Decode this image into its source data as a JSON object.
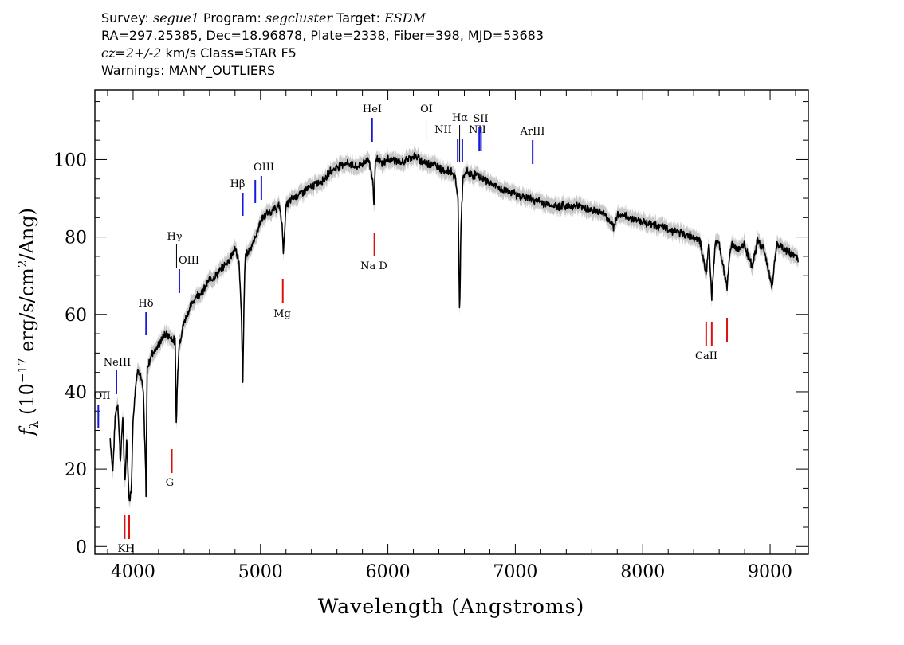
{
  "header": {
    "survey_label": "Survey:",
    "survey": "segue1",
    "program_label": "Program:",
    "program": "segcluster",
    "target_label": "Target:",
    "target": "ESDM",
    "line2": "RA=297.25385, Dec=18.96878, Plate=2338, Fiber=398, MJD=53683",
    "cz": "cz=2+/-2",
    "line3_rest": " km/s Class=STAR F5",
    "line4": "Warnings: MANY_OUTLIERS"
  },
  "chart_data": {
    "type": "line",
    "xlabel": "Wavelength (Angstroms)",
    "ylabel": "fλ (10^-17 erg/s/cm^2/Ang)",
    "xlim": [
      3700,
      9300
    ],
    "ylim": [
      -2,
      118
    ],
    "xticks": [
      4000,
      5000,
      6000,
      7000,
      8000,
      9000
    ],
    "yticks": [
      0,
      20,
      40,
      60,
      80,
      100
    ],
    "series": [
      {
        "style": "black flux line with grey error band",
        "x": [
          3820,
          3840,
          3860,
          3880,
          3900,
          3920,
          3935,
          3950,
          3968,
          3985,
          4000,
          4020,
          4040,
          4060,
          4080,
          4100,
          4102,
          4110,
          4130,
          4150,
          4200,
          4250,
          4300,
          4330,
          4340,
          4345,
          4360,
          4380,
          4400,
          4450,
          4500,
          4550,
          4600,
          4650,
          4700,
          4750,
          4800,
          4830,
          4850,
          4861,
          4870,
          4880,
          4900,
          4950,
          5000,
          5050,
          5100,
          5150,
          5172,
          5180,
          5200,
          5250,
          5300,
          5350,
          5400,
          5450,
          5500,
          5550,
          5600,
          5650,
          5700,
          5750,
          5800,
          5850,
          5880,
          5892,
          5900,
          5920,
          5950,
          6000,
          6050,
          6100,
          6150,
          6200,
          6250,
          6300,
          6350,
          6400,
          6450,
          6500,
          6530,
          6550,
          6563,
          6575,
          6590,
          6620,
          6650,
          6700,
          6750,
          6800,
          6850,
          6900,
          6950,
          7000,
          7100,
          7200,
          7300,
          7400,
          7500,
          7600,
          7700,
          7777,
          7800,
          7900,
          8000,
          8100,
          8200,
          8300,
          8400,
          8450,
          8498,
          8520,
          8542,
          8570,
          8600,
          8662,
          8690,
          8750,
          8800,
          8860,
          8900,
          8950,
          9015,
          9050,
          9100,
          9150,
          9200,
          9220
        ],
        "y": [
          28,
          19,
          34,
          37,
          22,
          34,
          15,
          28,
          12,
          14,
          33,
          42,
          46,
          44,
          40,
          18,
          13,
          46,
          48,
          50,
          52,
          55,
          54,
          53,
          30,
          40,
          52,
          55,
          58,
          62,
          65,
          66,
          69,
          70,
          72,
          74,
          77,
          74,
          60,
          42,
          62,
          75,
          76,
          79,
          84,
          86,
          87,
          88,
          82,
          76,
          88,
          90,
          91,
          92,
          93,
          94,
          95,
          97,
          98,
          99,
          99,
          98,
          99,
          100,
          95,
          88,
          99,
          100,
          99,
          100,
          100,
          99,
          100,
          101,
          100,
          99,
          99,
          98,
          97,
          97,
          95,
          90,
          60,
          85,
          95,
          97,
          96,
          96,
          95,
          94,
          93,
          92,
          92,
          91,
          90,
          89,
          88,
          88,
          88,
          87,
          86,
          82,
          86,
          85,
          84,
          83,
          82,
          81,
          80,
          79,
          70,
          79,
          64,
          79,
          78,
          67,
          78,
          77,
          78,
          72,
          79,
          77,
          67,
          78,
          77,
          76,
          75,
          74
        ],
        "error_band": 2
      }
    ],
    "line_markers": {
      "emission": [
        {
          "label": "OII",
          "x": 3727
        },
        {
          "label": "NeIII",
          "x": 3869
        },
        {
          "label": "Hδ",
          "x": 4102
        },
        {
          "label": "Hγ",
          "x": 4341
        },
        {
          "label": "OIII",
          "x": 4363
        },
        {
          "label": "Hβ",
          "x": 4861
        },
        {
          "label": "OIII",
          "x": 4959
        },
        {
          "label": "OIII",
          "x": 5007
        },
        {
          "label": "HeI",
          "x": 5876
        },
        {
          "label": "OI",
          "x": 6300
        },
        {
          "label": "NII",
          "x": 6548
        },
        {
          "label": "Hα",
          "x": 6563
        },
        {
          "label": "NII",
          "x": 6584
        },
        {
          "label": "SII",
          "x": 6717
        },
        {
          "label": "SII",
          "x": 6731
        },
        {
          "label": "ArIII",
          "x": 7136
        }
      ],
      "absorption": [
        {
          "label": "K",
          "x": 3934
        },
        {
          "label": "H",
          "x": 3969
        },
        {
          "label": "G",
          "x": 4304
        },
        {
          "label": "Mg",
          "x": 5175
        },
        {
          "label": "Na D",
          "x": 5894
        },
        {
          "label": "CaII",
          "x": 8498
        },
        {
          "label": "CaII",
          "x": 8542
        },
        {
          "label": "CaII",
          "x": 8662
        }
      ],
      "colors": {
        "emission": "#1a1adc",
        "absorption": "#dd1111",
        "sky": "#000000"
      }
    }
  }
}
